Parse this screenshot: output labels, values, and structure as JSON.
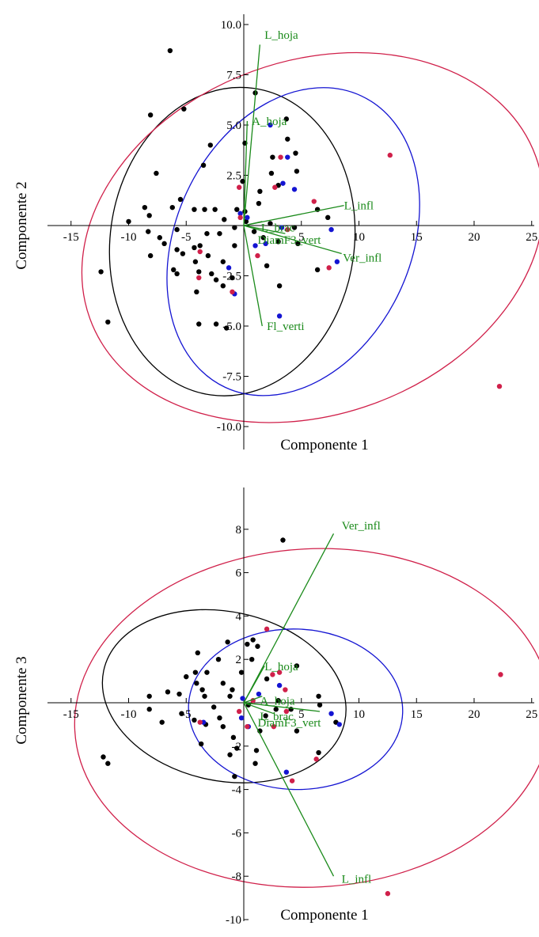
{
  "colors": {
    "black_group": "#000000",
    "blue_group": "#1414d2",
    "red_group": "#d0204a",
    "loadings": "#1a8a1a"
  },
  "chart_data": [
    {
      "type": "scatter",
      "xlabel": "Componente 1",
      "ylabel": "Componente 2",
      "xlim": [
        -17,
        26
      ],
      "ylim": [
        -11,
        11
      ],
      "x_ticks": [
        -15,
        -10,
        -5,
        5,
        10,
        15,
        20,
        25
      ],
      "x_tick_labels": [
        "-15",
        "-10",
        "-5",
        "5",
        "10",
        "15",
        "20",
        "25"
      ],
      "y_ticks": [
        -10,
        -7.5,
        -5,
        -2.5,
        2.5,
        5,
        7.5,
        10
      ],
      "y_tick_labels": [
        "-10.0",
        "-7.5",
        "-5.0",
        "-2.5",
        "2.5",
        "5.0",
        "7.5",
        "10.0"
      ],
      "ellipses": [
        {
          "group": "black",
          "cx": -1,
          "cy": -0.8,
          "rx": 10.6,
          "ry": 7.7,
          "angle": 8
        },
        {
          "group": "blue",
          "cx": 4.3,
          "cy": -0.8,
          "rx": 10.2,
          "ry": 8.0,
          "angle": 25
        },
        {
          "group": "red",
          "cx": 6,
          "cy": -0.6,
          "rx": 20.6,
          "ry": 8.8,
          "angle": -20
        }
      ],
      "loadings": [
        {
          "label": "L_hoja",
          "x": 1.4,
          "y": 9.0,
          "lx": 1.8,
          "ly": 9.3
        },
        {
          "label": "A_hoja",
          "x": 0.3,
          "y": 5.2,
          "lx": 0.7,
          "ly": 5.0
        },
        {
          "label": "L_infl",
          "x": 8.7,
          "y": 1.0,
          "lx": 8.7,
          "ly": 0.8
        },
        {
          "label": "Ver_infl",
          "x": 8.5,
          "y": -1.4,
          "lx": 8.6,
          "ly": -1.8
        },
        {
          "label": "Fl_verti",
          "x": 1.6,
          "y": -5.0,
          "lx": 2.0,
          "ly": -5.2
        },
        {
          "label": "L_brac",
          "x": 1.6,
          "y": 0.2,
          "lx": 1.5,
          "ly": -0.3
        },
        {
          "label": "DiamF3_vert",
          "x": 3.6,
          "y": -0.4,
          "lx": 1.2,
          "ly": -0.9
        }
      ],
      "series": [
        {
          "group": "black",
          "points": [
            [
              -6.4,
              8.7
            ],
            [
              1.0,
              6.6
            ],
            [
              -5.2,
              5.8
            ],
            [
              -8.1,
              5.5
            ],
            [
              3.7,
              5.3
            ],
            [
              -2.9,
              4.0
            ],
            [
              0.1,
              4.1
            ],
            [
              3.8,
              4.3
            ],
            [
              -3.5,
              3.0
            ],
            [
              4.5,
              3.6
            ],
            [
              2.5,
              3.4
            ],
            [
              -7.6,
              2.6
            ],
            [
              2.4,
              2.6
            ],
            [
              4.6,
              2.7
            ],
            [
              -0.1,
              2.2
            ],
            [
              1.4,
              1.7
            ],
            [
              3.0,
              2.0
            ],
            [
              -5.5,
              1.3
            ],
            [
              -8.6,
              0.9
            ],
            [
              -8.2,
              0.5
            ],
            [
              -6.2,
              0.9
            ],
            [
              -4.3,
              0.8
            ],
            [
              -3.4,
              0.8
            ],
            [
              -2.5,
              0.8
            ],
            [
              -0.6,
              0.8
            ],
            [
              0.1,
              0.7
            ],
            [
              1.3,
              1.1
            ],
            [
              6.4,
              0.8
            ],
            [
              7.3,
              0.4
            ],
            [
              -10.0,
              0.2
            ],
            [
              -1.7,
              0.3
            ],
            [
              0.2,
              0.2
            ],
            [
              2.3,
              0.1
            ],
            [
              -8.3,
              -0.3
            ],
            [
              -5.8,
              -0.2
            ],
            [
              -0.8,
              -0.1
            ],
            [
              4.4,
              -0.1
            ],
            [
              -7.3,
              -0.6
            ],
            [
              -3.2,
              -0.4
            ],
            [
              -2.1,
              -0.4
            ],
            [
              0.9,
              -0.3
            ],
            [
              1.7,
              -0.6
            ],
            [
              3.0,
              -0.8
            ],
            [
              4.7,
              -0.9
            ],
            [
              -6.9,
              -0.9
            ],
            [
              -3.8,
              -1.0
            ],
            [
              -0.8,
              -1.0
            ],
            [
              -8.1,
              -1.5
            ],
            [
              -5.8,
              -1.2
            ],
            [
              -4.3,
              -1.1
            ],
            [
              -5.3,
              -1.4
            ],
            [
              -3.1,
              -1.5
            ],
            [
              -4.2,
              -1.8
            ],
            [
              -1.8,
              -1.8
            ],
            [
              2.0,
              -2.0
            ],
            [
              -6.1,
              -2.2
            ],
            [
              -3.9,
              -2.3
            ],
            [
              -5.8,
              -2.4
            ],
            [
              -1.0,
              -2.6
            ],
            [
              -2.8,
              -2.4
            ],
            [
              -2.4,
              -2.7
            ],
            [
              -12.4,
              -2.3
            ],
            [
              -1.8,
              -3.0
            ],
            [
              3.1,
              -3.0
            ],
            [
              6.4,
              -2.2
            ],
            [
              -4.1,
              -3.3
            ],
            [
              -11.8,
              -4.8
            ],
            [
              -3.9,
              -4.9
            ],
            [
              -2.4,
              -4.9
            ],
            [
              -1.5,
              -5.1
            ]
          ]
        },
        {
          "group": "blue",
          "points": [
            [
              2.3,
              5.0
            ],
            [
              3.8,
              3.4
            ],
            [
              3.4,
              2.1
            ],
            [
              4.4,
              1.8
            ],
            [
              -0.3,
              0.6
            ],
            [
              0.3,
              0.4
            ],
            [
              3.3,
              -0.1
            ],
            [
              7.6,
              -0.2
            ],
            [
              1.9,
              -0.9
            ],
            [
              1.0,
              -1.0
            ],
            [
              8.1,
              -1.8
            ],
            [
              -1.3,
              -2.1
            ],
            [
              -0.8,
              -3.4
            ],
            [
              3.1,
              -4.5
            ]
          ]
        },
        {
          "group": "red",
          "points": [
            [
              12.7,
              3.5
            ],
            [
              3.2,
              3.4
            ],
            [
              2.7,
              1.9
            ],
            [
              6.1,
              1.2
            ],
            [
              7.4,
              -2.1
            ],
            [
              -0.3,
              0.4
            ],
            [
              -0.4,
              1.9
            ],
            [
              3.8,
              -0.2
            ],
            [
              1.2,
              -1.5
            ],
            [
              -3.8,
              -1.3
            ],
            [
              -3.9,
              -2.6
            ],
            [
              -1.0,
              -3.3
            ],
            [
              22.2,
              -8.0
            ]
          ]
        }
      ]
    },
    {
      "type": "scatter",
      "xlabel": "Componente 1",
      "ylabel": "Componente 3",
      "xlim": [
        -17,
        26
      ],
      "ylim": [
        -10,
        10
      ],
      "x_ticks": [
        -15,
        -10,
        -5,
        5,
        10,
        15,
        20,
        25
      ],
      "x_tick_labels": [
        "-15",
        "-10",
        "-5",
        "5",
        "10",
        "15",
        "20",
        "25"
      ],
      "y_ticks": [
        -10,
        -8,
        -6,
        -4,
        -2,
        2,
        4,
        6,
        8
      ],
      "y_tick_labels": [
        "-10",
        "-8",
        "-6",
        "-4",
        "-2",
        "2",
        "4",
        "6",
        "8"
      ],
      "ellipses": [
        {
          "group": "black",
          "cx": -1.7,
          "cy": 0.3,
          "rx": 10.7,
          "ry": 3.9,
          "angle": 12
        },
        {
          "group": "blue",
          "cx": 4.5,
          "cy": -0.3,
          "rx": 9.3,
          "ry": 3.7,
          "angle": 2
        },
        {
          "group": "red",
          "cx": 6,
          "cy": -0.7,
          "rx": 20.7,
          "ry": 7.8,
          "angle": -3
        }
      ],
      "loadings": [
        {
          "label": "Ver_infl",
          "x": 7.8,
          "y": 7.8,
          "lx": 8.5,
          "ly": 8.0
        },
        {
          "label": "L_hoja",
          "x": 1.8,
          "y": 1.7,
          "lx": 1.8,
          "ly": 1.5
        },
        {
          "label": "A_hoja",
          "x": 1.6,
          "y": 0.3,
          "lx": 1.4,
          "ly": -0.1
        },
        {
          "label": "L_brac",
          "x": 2.6,
          "y": -0.5,
          "lx": 1.4,
          "ly": -0.8
        },
        {
          "label": "DiamF3_vert",
          "x": 6.6,
          "y": -0.4,
          "lx": 1.2,
          "ly": -1.1
        },
        {
          "label": "L_infl",
          "x": 7.8,
          "y": -8.0,
          "lx": 8.5,
          "ly": -8.3
        }
      ],
      "series": [
        {
          "group": "black",
          "points": [
            [
              3.4,
              7.5
            ],
            [
              0.8,
              2.9
            ],
            [
              -1.4,
              2.8
            ],
            [
              0.3,
              2.7
            ],
            [
              1.2,
              2.6
            ],
            [
              -4.0,
              2.3
            ],
            [
              0.7,
              2.0
            ],
            [
              -2.2,
              2.0
            ],
            [
              4.6,
              1.7
            ],
            [
              -4.2,
              1.4
            ],
            [
              -3.2,
              1.4
            ],
            [
              -0.2,
              1.4
            ],
            [
              -5.0,
              1.2
            ],
            [
              -4.1,
              0.9
            ],
            [
              -1.8,
              0.9
            ],
            [
              2.0,
              1.1
            ],
            [
              -3.6,
              0.6
            ],
            [
              -1.0,
              0.6
            ],
            [
              6.5,
              0.3
            ],
            [
              -8.2,
              0.3
            ],
            [
              -6.6,
              0.5
            ],
            [
              -5.6,
              0.4
            ],
            [
              -3.4,
              0.3
            ],
            [
              -1.2,
              0.3
            ],
            [
              3.0,
              0.1
            ],
            [
              6.6,
              -0.1
            ],
            [
              -8.2,
              -0.3
            ],
            [
              -2.6,
              -0.2
            ],
            [
              0.4,
              -0.1
            ],
            [
              2.8,
              -0.3
            ],
            [
              4.1,
              -0.3
            ],
            [
              -5.4,
              -0.5
            ],
            [
              -4.3,
              -0.8
            ],
            [
              1.9,
              -0.6
            ],
            [
              -2.1,
              -0.7
            ],
            [
              8.0,
              -0.9
            ],
            [
              -7.1,
              -0.9
            ],
            [
              -3.3,
              -1.0
            ],
            [
              -1.8,
              -1.1
            ],
            [
              1.4,
              -1.3
            ],
            [
              4.6,
              -1.3
            ],
            [
              -0.9,
              -1.6
            ],
            [
              -3.7,
              -1.9
            ],
            [
              -0.6,
              -2.1
            ],
            [
              1.1,
              -2.2
            ],
            [
              6.5,
              -2.3
            ],
            [
              -12.2,
              -2.5
            ],
            [
              -1.2,
              -2.4
            ],
            [
              -11.8,
              -2.8
            ],
            [
              1.0,
              -2.8
            ],
            [
              -0.8,
              -3.4
            ]
          ]
        },
        {
          "group": "blue",
          "points": [
            [
              1.3,
              0.4
            ],
            [
              3.1,
              0.8
            ],
            [
              -0.1,
              0.2
            ],
            [
              7.6,
              -0.5
            ],
            [
              8.3,
              -1.0
            ],
            [
              -0.2,
              -0.7
            ],
            [
              0.4,
              -1.1
            ],
            [
              -3.5,
              -0.9
            ],
            [
              3.7,
              -3.2
            ]
          ]
        },
        {
          "group": "red",
          "points": [
            [
              22.3,
              1.3
            ],
            [
              2.0,
              3.4
            ],
            [
              2.5,
              1.3
            ],
            [
              3.1,
              1.4
            ],
            [
              3.6,
              0.6
            ],
            [
              0.8,
              0.1
            ],
            [
              -0.4,
              -0.4
            ],
            [
              3.7,
              -0.4
            ],
            [
              -3.8,
              -0.9
            ],
            [
              0.3,
              -1.1
            ],
            [
              2.6,
              -1.1
            ],
            [
              6.3,
              -2.6
            ],
            [
              4.2,
              -3.6
            ],
            [
              12.5,
              -8.8
            ]
          ]
        }
      ]
    }
  ]
}
